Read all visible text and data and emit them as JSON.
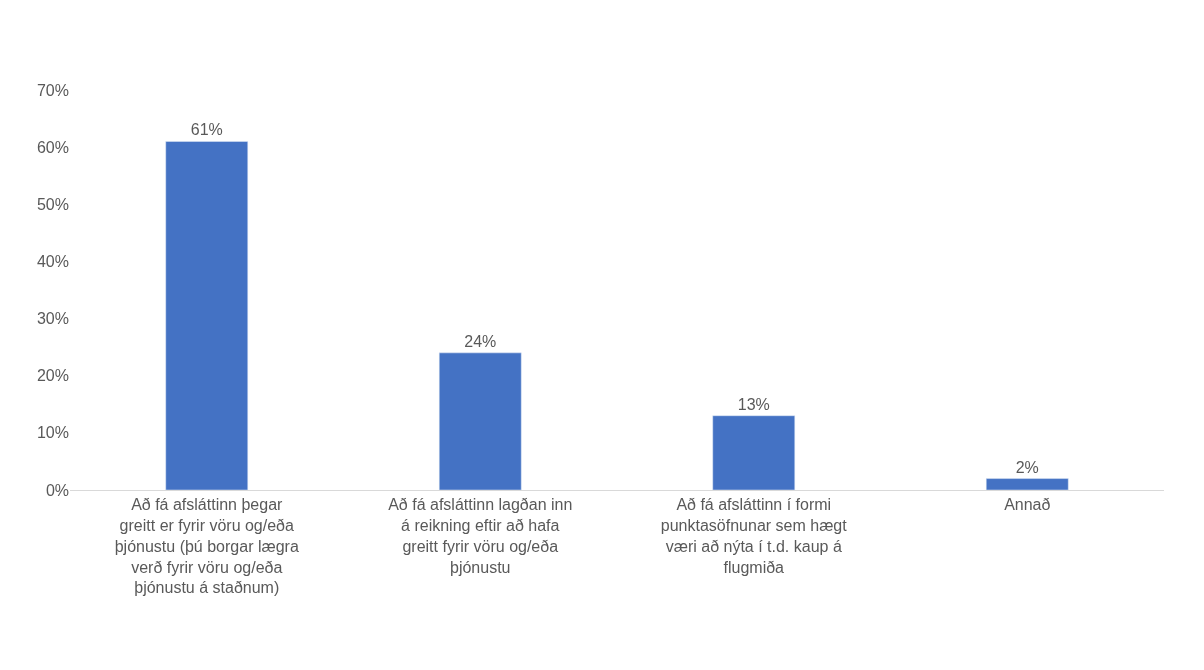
{
  "chart_data": {
    "type": "bar",
    "categories": [
      "Að fá afsláttinn þegar greitt er fyrir vöru og/eða þjónustu (þú borgar lægra verð fyrir vöru og/eða þjónustu á staðnum)",
      "Að fá afsláttinn lagðan inn á reikning eftir að hafa greitt fyrir vöru og/eða þjónustu",
      "Að fá afsláttinn í formi punktasöfnunar sem hægt væri að nýta í t.d. kaup á flugmiða",
      "Annað"
    ],
    "values": [
      61,
      24,
      13,
      2
    ],
    "value_labels": [
      "61%",
      "24%",
      "13%",
      "2%"
    ],
    "color": "#4472c4",
    "ylim": [
      0,
      70
    ],
    "yticks": [
      {
        "value": 0,
        "label": "0%"
      },
      {
        "value": 10,
        "label": "10%"
      },
      {
        "value": 20,
        "label": "20%"
      },
      {
        "value": 30,
        "label": "30%"
      },
      {
        "value": 40,
        "label": "40%"
      },
      {
        "value": 50,
        "label": "50%"
      },
      {
        "value": 60,
        "label": "60%"
      },
      {
        "value": 70,
        "label": "70%"
      }
    ]
  }
}
